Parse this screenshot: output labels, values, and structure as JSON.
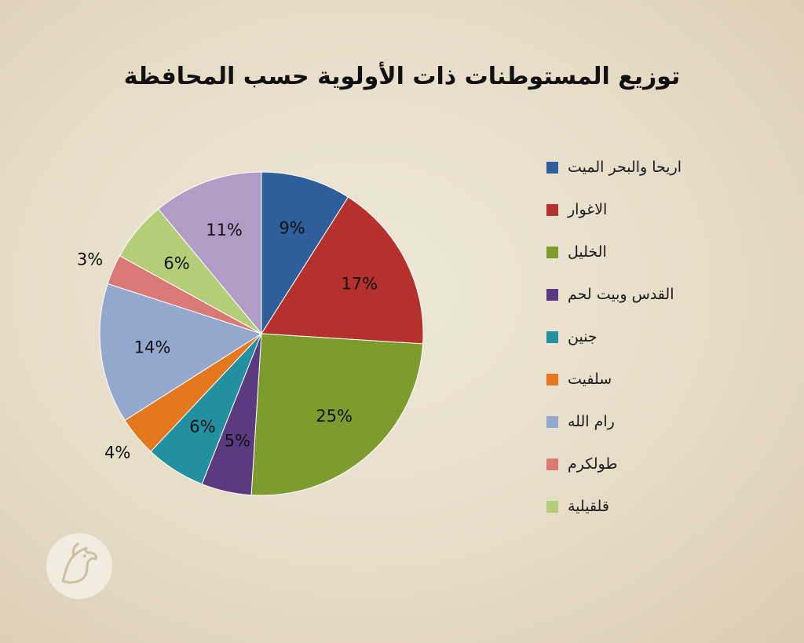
{
  "chart_data": {
    "type": "pie",
    "title": "توزيع المستوطنات ذات الأولوية حسب المحافظة",
    "legend_position": "right",
    "slices": [
      {
        "label": "اريحا والبحر الميت",
        "value": 9,
        "display": "9%",
        "color": "#2e5f9a"
      },
      {
        "label": "الاغوار",
        "value": 17,
        "display": "17%",
        "color": "#b5312e"
      },
      {
        "label": "الخليل",
        "value": 25,
        "display": "25%",
        "color": "#7d9c2e"
      },
      {
        "label": "القدس وبيت لحم",
        "value": 5,
        "display": "5%",
        "color": "#5c3a80"
      },
      {
        "label": "جنين",
        "value": 6,
        "display": "6%",
        "color": "#23909f"
      },
      {
        "label": "سلفيت",
        "value": 4,
        "display": "4%",
        "color": "#e3781e"
      },
      {
        "label": "رام الله",
        "value": 14,
        "display": "14%",
        "color": "#93a8cc"
      },
      {
        "label": "طولكرم",
        "value": 3,
        "display": "3%",
        "color": "#da7875"
      },
      {
        "label": "قلقيلية",
        "value": 6,
        "display": "6%",
        "color": "#b3cd78"
      },
      {
        "label": "",
        "value": 11,
        "display": "11%",
        "color": "#b09cc4"
      }
    ]
  }
}
